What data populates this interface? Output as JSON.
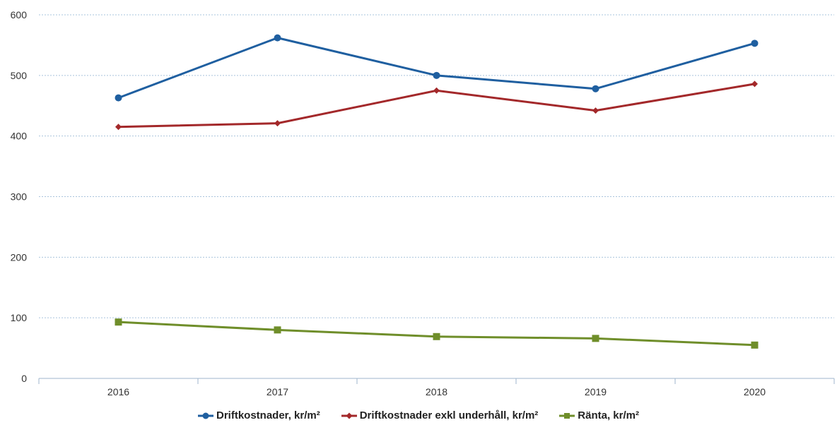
{
  "chart_data": {
    "type": "line",
    "categories": [
      "2016",
      "2017",
      "2018",
      "2019",
      "2020"
    ],
    "series": [
      {
        "name": "Driftkostnader, kr/m²",
        "values": [
          463,
          562,
          500,
          478,
          553
        ],
        "color": "#1f5fa0",
        "marker": "circle"
      },
      {
        "name": "Driftkostnader exkl underhåll, kr/m²",
        "values": [
          415,
          421,
          475,
          442,
          486
        ],
        "color": "#a3282a",
        "marker": "diamond"
      },
      {
        "name": "Ränta, kr/m²",
        "values": [
          93,
          80,
          69,
          66,
          55
        ],
        "color": "#6f8e2a",
        "marker": "square"
      }
    ],
    "yticks": [
      "0",
      "100",
      "200",
      "300",
      "400",
      "500",
      "600"
    ],
    "ylim": [
      0,
      600
    ],
    "grid": true,
    "legend_position": "bottom"
  }
}
